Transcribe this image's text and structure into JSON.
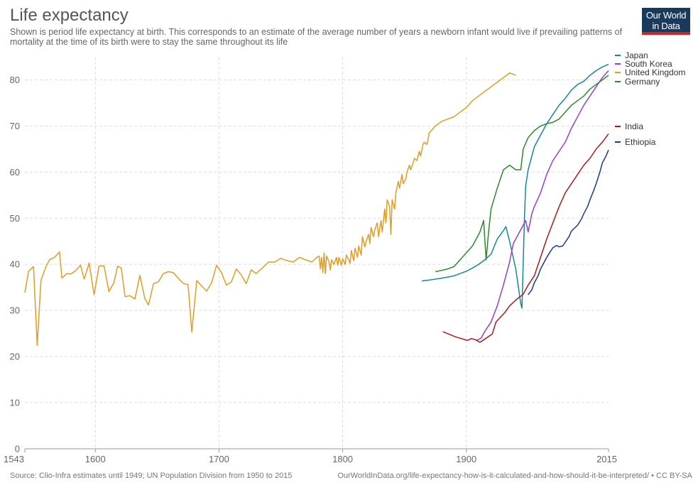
{
  "header": {
    "title": "Life expectancy",
    "subtitle": "Shown is period life expectancy at birth. This corresponds to an estimate of the average number of years a newborn infant would live if prevailing patterns of mortality at the time of its birth were to stay the same throughout its life"
  },
  "logo": {
    "line1": "Our World",
    "line2": "in Data"
  },
  "footer": {
    "source": "Source: Clio-Infra estimates until 1949; UN Population Division from 1950 to 2015",
    "url": "OurWorldInData.org/life-expectancy-how-is-it-calculated-and-how-should-it-be-interpreted/ • CC BY-SA"
  },
  "chart_data": {
    "type": "line",
    "title": "Life expectancy",
    "xlabel": "",
    "ylabel": "",
    "xlim": [
      1543,
      2015
    ],
    "ylim": [
      0,
      85
    ],
    "x_ticks": [
      1543,
      1600,
      1700,
      1800,
      1900,
      2015
    ],
    "y_ticks": [
      0,
      10,
      20,
      30,
      40,
      50,
      60,
      70,
      80
    ],
    "grid": true,
    "legend_position": "right, at line ends",
    "series": [
      {
        "name": "Japan",
        "color": "#13889a",
        "points": [
          [
            1864,
            36.4
          ],
          [
            1870,
            36.6
          ],
          [
            1880,
            37.0
          ],
          [
            1890,
            37.5
          ],
          [
            1900,
            38.5
          ],
          [
            1905,
            39.2
          ],
          [
            1910,
            40.0
          ],
          [
            1915,
            41.0
          ],
          [
            1920,
            42.2
          ],
          [
            1925,
            45.5
          ],
          [
            1930,
            47.3
          ],
          [
            1932,
            48.2
          ],
          [
            1935,
            45.0
          ],
          [
            1940,
            39.0
          ],
          [
            1944,
            31.5
          ],
          [
            1945,
            30.5
          ],
          [
            1947,
            50.0
          ],
          [
            1948,
            57.0
          ],
          [
            1950,
            60.5
          ],
          [
            1952,
            62.5
          ],
          [
            1955,
            65.5
          ],
          [
            1960,
            68.0
          ],
          [
            1965,
            70.5
          ],
          [
            1970,
            72.5
          ],
          [
            1975,
            74.5
          ],
          [
            1980,
            76.0
          ],
          [
            1985,
            77.8
          ],
          [
            1990,
            79.0
          ],
          [
            1995,
            79.7
          ],
          [
            2000,
            81.0
          ],
          [
            2005,
            82.0
          ],
          [
            2010,
            82.8
          ],
          [
            2015,
            83.4
          ]
        ]
      },
      {
        "name": "South Korea",
        "color": "#9a3ec2",
        "points": [
          [
            1908,
            23.5
          ],
          [
            1912,
            24.0
          ],
          [
            1915,
            25.5
          ],
          [
            1920,
            27.5
          ],
          [
            1925,
            31.0
          ],
          [
            1930,
            35.5
          ],
          [
            1935,
            40.5
          ],
          [
            1938,
            44.5
          ],
          [
            1940,
            45.5
          ],
          [
            1943,
            47.0
          ],
          [
            1945,
            48.0
          ],
          [
            1948,
            49.5
          ],
          [
            1950,
            47.0
          ],
          [
            1953,
            51.0
          ],
          [
            1955,
            52.5
          ],
          [
            1960,
            55.5
          ],
          [
            1965,
            59.5
          ],
          [
            1970,
            62.5
          ],
          [
            1975,
            64.5
          ],
          [
            1980,
            66.5
          ],
          [
            1985,
            69.5
          ],
          [
            1990,
            72.0
          ],
          [
            1995,
            74.5
          ],
          [
            2000,
            76.5
          ],
          [
            2005,
            78.5
          ],
          [
            2010,
            80.5
          ],
          [
            2015,
            82.0
          ]
        ]
      },
      {
        "name": "United Kingdom",
        "color": "#e19c24",
        "points": [
          [
            1543,
            33.9
          ],
          [
            1546,
            38.5
          ],
          [
            1550,
            39.5
          ],
          [
            1553,
            22.4
          ],
          [
            1556,
            36.5
          ],
          [
            1560,
            39.5
          ],
          [
            1563,
            41.0
          ],
          [
            1567,
            41.5
          ],
          [
            1571,
            42.7
          ],
          [
            1573,
            37.0
          ],
          [
            1577,
            38.0
          ],
          [
            1580,
            37.9
          ],
          [
            1584,
            38.6
          ],
          [
            1588,
            39.8
          ],
          [
            1591,
            36.8
          ],
          [
            1595,
            40.3
          ],
          [
            1599,
            33.4
          ],
          [
            1603,
            39.6
          ],
          [
            1607,
            39.7
          ],
          [
            1611,
            34.1
          ],
          [
            1615,
            36.0
          ],
          [
            1618,
            39.6
          ],
          [
            1621,
            39.2
          ],
          [
            1624,
            33.0
          ],
          [
            1628,
            33.2
          ],
          [
            1632,
            32.5
          ],
          [
            1636,
            37.6
          ],
          [
            1640,
            32.6
          ],
          [
            1643,
            31.2
          ],
          [
            1647,
            35.8
          ],
          [
            1651,
            36.2
          ],
          [
            1655,
            38.0
          ],
          [
            1659,
            38.4
          ],
          [
            1663,
            38.2
          ],
          [
            1667,
            37.0
          ],
          [
            1671,
            35.9
          ],
          [
            1675,
            35.6
          ],
          [
            1678,
            25.3
          ],
          [
            1682,
            36.5
          ],
          [
            1686,
            35.3
          ],
          [
            1690,
            34.2
          ],
          [
            1694,
            36.0
          ],
          [
            1698,
            39.8
          ],
          [
            1702,
            38.2
          ],
          [
            1706,
            35.5
          ],
          [
            1710,
            36.2
          ],
          [
            1714,
            39.0
          ],
          [
            1718,
            37.7
          ],
          [
            1722,
            35.8
          ],
          [
            1726,
            38.8
          ],
          [
            1730,
            38.0
          ],
          [
            1735,
            39.2
          ],
          [
            1740,
            40.5
          ],
          [
            1745,
            40.5
          ],
          [
            1750,
            41.3
          ],
          [
            1755,
            40.8
          ],
          [
            1760,
            40.5
          ],
          [
            1765,
            41.5
          ],
          [
            1770,
            41.0
          ],
          [
            1775,
            40.5
          ],
          [
            1779,
            41.5
          ],
          [
            1781,
            41.8
          ],
          [
            1782,
            39.0
          ],
          [
            1783,
            41.5
          ],
          [
            1784,
            38.2
          ],
          [
            1785,
            42.5
          ],
          [
            1786,
            38.0
          ],
          [
            1787,
            41.8
          ],
          [
            1789,
            40.5
          ],
          [
            1790,
            38.8
          ],
          [
            1791,
            41.0
          ],
          [
            1793,
            40.0
          ],
          [
            1795,
            41.5
          ],
          [
            1796,
            39.8
          ],
          [
            1797,
            41.5
          ],
          [
            1799,
            39.8
          ],
          [
            1800,
            41.2
          ],
          [
            1802,
            40.0
          ],
          [
            1803,
            42.0
          ],
          [
            1805,
            41.0
          ],
          [
            1806,
            40.2
          ],
          [
            1807,
            43.0
          ],
          [
            1809,
            40.8
          ],
          [
            1810,
            43.5
          ],
          [
            1812,
            41.5
          ],
          [
            1813,
            44.0
          ],
          [
            1815,
            42.0
          ],
          [
            1816,
            46.0
          ],
          [
            1818,
            43.8
          ],
          [
            1819,
            45.0
          ],
          [
            1821,
            46.5
          ],
          [
            1822,
            44.5
          ],
          [
            1823,
            48.0
          ],
          [
            1825,
            46.0
          ],
          [
            1826,
            47.5
          ],
          [
            1828,
            49.0
          ],
          [
            1829,
            46.0
          ],
          [
            1831,
            49.5
          ],
          [
            1832,
            47.0
          ],
          [
            1834,
            52.0
          ],
          [
            1835,
            49.0
          ],
          [
            1836,
            54.0
          ],
          [
            1838,
            52.5
          ],
          [
            1839,
            46.5
          ],
          [
            1840,
            54.0
          ],
          [
            1842,
            52.0
          ],
          [
            1843,
            55.5
          ],
          [
            1845,
            58.0
          ],
          [
            1846,
            56.5
          ],
          [
            1848,
            59.5
          ],
          [
            1849,
            57.5
          ],
          [
            1851,
            58.5
          ],
          [
            1852,
            60.0
          ],
          [
            1854,
            61.5
          ],
          [
            1855,
            60.5
          ],
          [
            1857,
            62.0
          ],
          [
            1858,
            63.0
          ],
          [
            1860,
            62.5
          ],
          [
            1862,
            64.5
          ],
          [
            1863,
            63.5
          ],
          [
            1865,
            66.0
          ],
          [
            1866,
            66.5
          ],
          [
            1868,
            66.0
          ],
          [
            1869,
            67.0
          ],
          [
            1870,
            68.5
          ],
          [
            1875,
            70.0
          ],
          [
            1880,
            71.0
          ],
          [
            1885,
            71.5
          ],
          [
            1890,
            72.0
          ],
          [
            1895,
            73.0
          ],
          [
            1900,
            74.0
          ],
          [
            1905,
            75.5
          ],
          [
            1910,
            76.5
          ],
          [
            1915,
            77.5
          ],
          [
            1920,
            78.5
          ],
          [
            1925,
            79.5
          ],
          [
            1930,
            80.5
          ],
          [
            1935,
            81.5
          ],
          [
            1940,
            81.0
          ]
        ]
      },
      {
        "name": "Germany",
        "color": "#2b8a2b",
        "points": [
          [
            1875,
            38.4
          ],
          [
            1880,
            38.7
          ],
          [
            1885,
            39.0
          ],
          [
            1890,
            39.5
          ],
          [
            1895,
            41.0
          ],
          [
            1900,
            42.5
          ],
          [
            1905,
            44.0
          ],
          [
            1908,
            45.5
          ],
          [
            1911,
            47.0
          ],
          [
            1914,
            49.5
          ],
          [
            1916,
            41.0
          ],
          [
            1918,
            47.0
          ],
          [
            1920,
            52.0
          ],
          [
            1925,
            56.5
          ],
          [
            1930,
            60.5
          ],
          [
            1935,
            61.5
          ],
          [
            1940,
            60.5
          ],
          [
            1944,
            60.5
          ],
          [
            1946,
            65.0
          ],
          [
            1950,
            67.5
          ],
          [
            1955,
            69.0
          ],
          [
            1960,
            70.0
          ],
          [
            1965,
            70.5
          ],
          [
            1970,
            70.8
          ],
          [
            1975,
            71.5
          ],
          [
            1980,
            73.0
          ],
          [
            1985,
            74.5
          ],
          [
            1990,
            75.5
          ],
          [
            1995,
            76.5
          ],
          [
            2000,
            78.0
          ],
          [
            2005,
            79.0
          ],
          [
            2010,
            80.0
          ],
          [
            2015,
            81.0
          ]
        ]
      },
      {
        "name": "India",
        "color": "#b01919",
        "points": [
          [
            1881,
            25.4
          ],
          [
            1891,
            24.3
          ],
          [
            1901,
            23.5
          ],
          [
            1904,
            23.9
          ],
          [
            1907,
            23.7
          ],
          [
            1911,
            23.1
          ],
          [
            1915,
            23.8
          ],
          [
            1921,
            24.9
          ],
          [
            1924,
            27.5
          ],
          [
            1931,
            29.5
          ],
          [
            1935,
            31.0
          ],
          [
            1941,
            32.5
          ],
          [
            1946,
            33.5
          ],
          [
            1950,
            35.5
          ],
          [
            1955,
            37.5
          ],
          [
            1960,
            41.5
          ],
          [
            1965,
            45.5
          ],
          [
            1970,
            49.0
          ],
          [
            1975,
            52.5
          ],
          [
            1980,
            55.5
          ],
          [
            1985,
            57.5
          ],
          [
            1990,
            59.5
          ],
          [
            1995,
            61.5
          ],
          [
            2000,
            63.0
          ],
          [
            2005,
            65.0
          ],
          [
            2010,
            66.5
          ],
          [
            2015,
            68.3
          ]
        ]
      },
      {
        "name": "Ethiopia",
        "color": "#1a3a8f",
        "points": [
          [
            1950,
            33.4
          ],
          [
            1953,
            34.5
          ],
          [
            1955,
            36.0
          ],
          [
            1958,
            37.5
          ],
          [
            1960,
            39.0
          ],
          [
            1963,
            40.5
          ],
          [
            1965,
            41.5
          ],
          [
            1968,
            42.8
          ],
          [
            1970,
            43.6
          ],
          [
            1973,
            44.1
          ],
          [
            1975,
            43.8
          ],
          [
            1978,
            44.0
          ],
          [
            1980,
            44.8
          ],
          [
            1983,
            46.0
          ],
          [
            1985,
            47.2
          ],
          [
            1988,
            48.0
          ],
          [
            1990,
            48.5
          ],
          [
            1993,
            49.8
          ],
          [
            1995,
            51.0
          ],
          [
            1998,
            52.5
          ],
          [
            2000,
            54.0
          ],
          [
            2003,
            56.0
          ],
          [
            2005,
            57.5
          ],
          [
            2008,
            60.0
          ],
          [
            2010,
            62.0
          ],
          [
            2013,
            63.5
          ],
          [
            2015,
            64.8
          ]
        ]
      }
    ]
  }
}
